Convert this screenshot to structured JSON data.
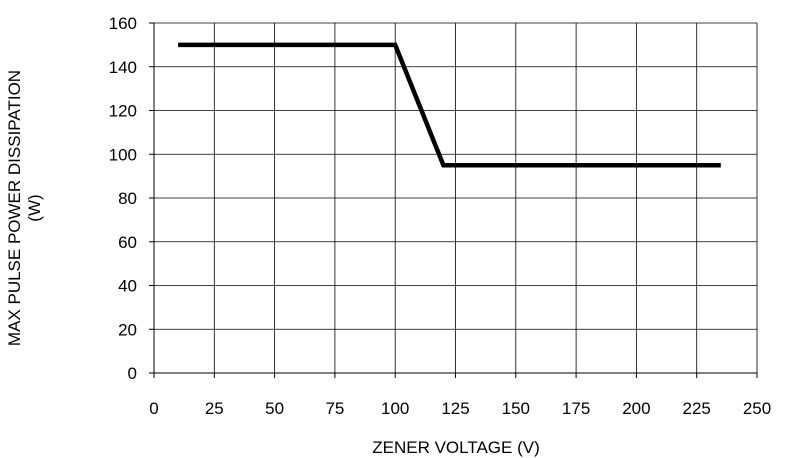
{
  "chart_data": {
    "type": "line",
    "title": "",
    "xlabel": "ZENER VOLTAGE (V)",
    "ylabel_lines": [
      "MAX PULSE POWER DISSIPATION",
      "(W)"
    ],
    "xlim": [
      0,
      250
    ],
    "ylim": [
      0,
      160
    ],
    "x_ticks": [
      0,
      25,
      50,
      75,
      100,
      125,
      150,
      175,
      200,
      225,
      250
    ],
    "y_ticks": [
      0,
      20,
      40,
      60,
      80,
      100,
      120,
      140,
      160
    ],
    "grid": true,
    "legend": "none",
    "series": [
      {
        "x": [
          10,
          100,
          120,
          235
        ],
        "y": [
          150,
          150,
          95,
          95
        ],
        "color": "#000000"
      }
    ]
  }
}
